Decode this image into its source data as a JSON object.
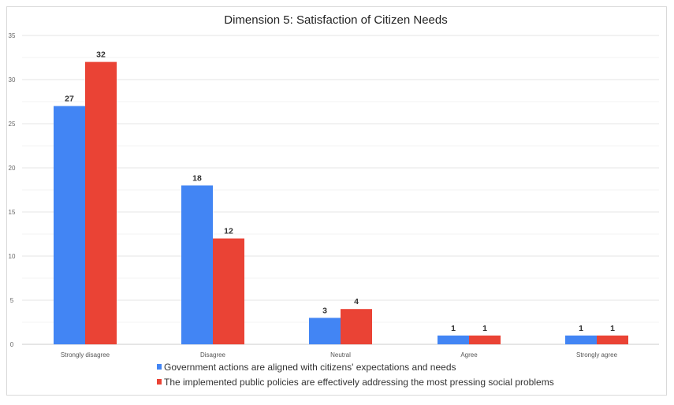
{
  "chart_data": {
    "type": "bar",
    "title": "Dimension 5: Satisfaction of Citizen Needs",
    "xlabel": "",
    "ylabel": "",
    "ylim": [
      0,
      35
    ],
    "yticks": [
      0,
      5,
      10,
      15,
      20,
      25,
      30,
      35
    ],
    "grid": true,
    "legend_position": "bottom",
    "categories": [
      "Strongly disagree",
      "Disagree",
      "Neutral",
      "Agree",
      "Strongly agree"
    ],
    "series": [
      {
        "name": "Government actions are aligned with citizens' expectations and needs",
        "color": "#4285f4",
        "values": [
          27,
          18,
          3,
          1,
          1
        ]
      },
      {
        "name": "The implemented public policies are effectively addressing the most pressing social problems",
        "color": "#ea4335",
        "values": [
          32,
          12,
          4,
          1,
          1
        ]
      }
    ]
  }
}
